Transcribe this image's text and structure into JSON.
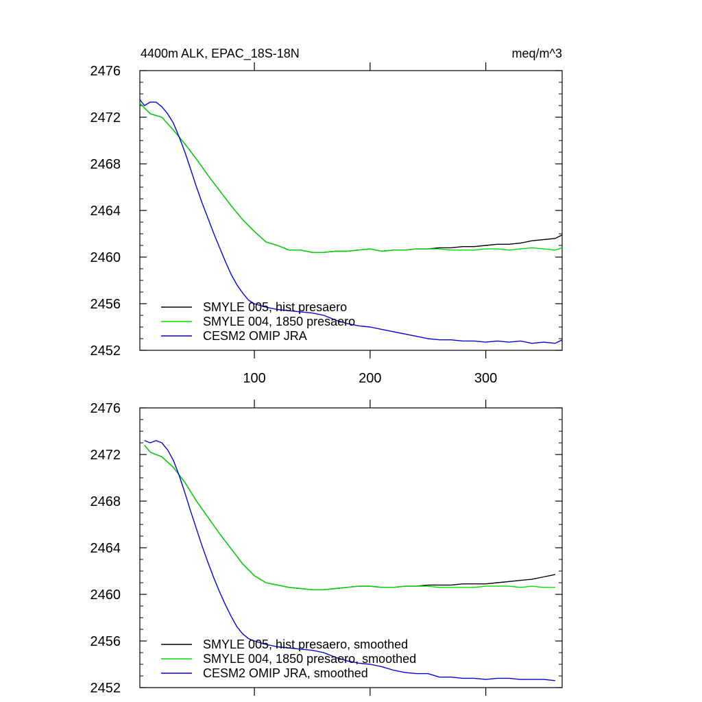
{
  "chart_data": [
    {
      "type": "line",
      "title_left": "4400m ALK, EPAC_18S-18N",
      "title_right": "meq/m^3",
      "xlim": [
        1,
        366
      ],
      "ylim": [
        2452,
        2476
      ],
      "yticks": [
        2452,
        2456,
        2460,
        2464,
        2468,
        2472,
        2476
      ],
      "xticks": [
        100,
        200,
        300
      ],
      "show_xtick_labels": true,
      "grid": false,
      "legend_position": "bottom-left",
      "colors": {
        "SMYLE 005": "#000000",
        "SMYLE 004": "#00dd00",
        "CESM2 OMIP": "#0000dd"
      },
      "series": [
        {
          "name": "SMYLE 005, hist presaero",
          "color": "#000000",
          "x": [
            1,
            10,
            20,
            30,
            40,
            50,
            60,
            70,
            80,
            90,
            100,
            110,
            120,
            130,
            140,
            150,
            160,
            170,
            180,
            190,
            200,
            210,
            220,
            230,
            240,
            250,
            260,
            270,
            280,
            290,
            300,
            310,
            320,
            330,
            340,
            350,
            360,
            366
          ],
          "y": [
            2473.2,
            2472.3,
            2472.0,
            2470.9,
            2469.7,
            2468.4,
            2467.0,
            2465.7,
            2464.4,
            2463.2,
            2462.2,
            2461.3,
            2461.0,
            2460.6,
            2460.6,
            2460.4,
            2460.4,
            2460.5,
            2460.5,
            2460.6,
            2460.7,
            2460.5,
            2460.6,
            2460.6,
            2460.7,
            2460.7,
            2460.8,
            2460.8,
            2460.9,
            2460.9,
            2461.0,
            2461.1,
            2461.1,
            2461.2,
            2461.4,
            2461.5,
            2461.6,
            2461.9
          ]
        },
        {
          "name": "SMYLE 004, 1850 presaero",
          "color": "#00dd00",
          "x": [
            1,
            10,
            20,
            30,
            40,
            50,
            60,
            70,
            80,
            90,
            100,
            110,
            120,
            130,
            140,
            150,
            160,
            170,
            180,
            190,
            200,
            210,
            220,
            230,
            240,
            250,
            260,
            270,
            280,
            290,
            300,
            310,
            320,
            330,
            340,
            350,
            360,
            366
          ],
          "y": [
            2473.2,
            2472.3,
            2472.0,
            2470.9,
            2469.7,
            2468.4,
            2467.0,
            2465.7,
            2464.4,
            2463.2,
            2462.2,
            2461.3,
            2461.0,
            2460.6,
            2460.6,
            2460.4,
            2460.4,
            2460.5,
            2460.5,
            2460.6,
            2460.7,
            2460.5,
            2460.6,
            2460.6,
            2460.7,
            2460.7,
            2460.7,
            2460.6,
            2460.6,
            2460.6,
            2460.7,
            2460.7,
            2460.6,
            2460.7,
            2460.8,
            2460.7,
            2460.6,
            2460.8
          ]
        },
        {
          "name": "CESM2 OMIP JRA",
          "color": "#0000dd",
          "x": [
            1,
            5,
            10,
            15,
            20,
            25,
            30,
            35,
            40,
            45,
            50,
            55,
            60,
            65,
            70,
            75,
            80,
            85,
            90,
            95,
            100,
            110,
            120,
            130,
            140,
            150,
            160,
            170,
            180,
            190,
            200,
            210,
            220,
            230,
            240,
            250,
            260,
            270,
            280,
            290,
            300,
            310,
            320,
            330,
            340,
            350,
            360,
            366
          ],
          "y": [
            2473.5,
            2473.0,
            2473.3,
            2473.3,
            2472.9,
            2472.3,
            2471.5,
            2470.3,
            2469.0,
            2467.5,
            2466.0,
            2464.6,
            2463.3,
            2462.0,
            2460.8,
            2459.6,
            2458.5,
            2457.6,
            2456.9,
            2456.3,
            2456.0,
            2455.7,
            2455.5,
            2455.4,
            2455.3,
            2455.2,
            2455.0,
            2454.6,
            2454.3,
            2454.1,
            2454.0,
            2453.8,
            2453.6,
            2453.4,
            2453.2,
            2453.0,
            2452.9,
            2452.9,
            2452.8,
            2452.8,
            2452.7,
            2452.8,
            2452.7,
            2452.8,
            2452.6,
            2452.7,
            2452.6,
            2452.9
          ]
        }
      ]
    },
    {
      "type": "line",
      "title_left": "",
      "title_right": "",
      "xlim": [
        1,
        366
      ],
      "ylim": [
        2452,
        2476
      ],
      "yticks": [
        2452,
        2456,
        2460,
        2464,
        2468,
        2472,
        2476
      ],
      "xticks": [
        100,
        200,
        300
      ],
      "show_xtick_labels": false,
      "grid": false,
      "legend_position": "bottom-left",
      "series": [
        {
          "name": "SMYLE 005, hist presaero, smoothed",
          "color": "#000000",
          "x": [
            5,
            10,
            20,
            30,
            40,
            50,
            60,
            70,
            80,
            90,
            100,
            110,
            120,
            130,
            140,
            150,
            160,
            170,
            180,
            190,
            200,
            210,
            220,
            230,
            240,
            250,
            260,
            270,
            280,
            290,
            300,
            310,
            320,
            330,
            340,
            350,
            360
          ],
          "y": [
            2472.8,
            2472.2,
            2471.8,
            2470.9,
            2469.6,
            2468.0,
            2466.6,
            2465.2,
            2463.9,
            2462.6,
            2461.6,
            2461.0,
            2460.8,
            2460.6,
            2460.5,
            2460.4,
            2460.4,
            2460.5,
            2460.6,
            2460.7,
            2460.7,
            2460.6,
            2460.6,
            2460.7,
            2460.7,
            2460.8,
            2460.8,
            2460.8,
            2460.9,
            2460.9,
            2460.9,
            2461.0,
            2461.1,
            2461.2,
            2461.3,
            2461.5,
            2461.7
          ]
        },
        {
          "name": "SMYLE 004, 1850 presaero, smoothed",
          "color": "#00dd00",
          "x": [
            5,
            10,
            20,
            30,
            40,
            50,
            60,
            70,
            80,
            90,
            100,
            110,
            120,
            130,
            140,
            150,
            160,
            170,
            180,
            190,
            200,
            210,
            220,
            230,
            240,
            250,
            260,
            270,
            280,
            290,
            300,
            310,
            320,
            330,
            340,
            350,
            360
          ],
          "y": [
            2472.8,
            2472.2,
            2471.8,
            2470.9,
            2469.6,
            2468.0,
            2466.6,
            2465.2,
            2463.9,
            2462.6,
            2461.6,
            2461.0,
            2460.8,
            2460.6,
            2460.5,
            2460.4,
            2460.4,
            2460.5,
            2460.6,
            2460.7,
            2460.7,
            2460.6,
            2460.6,
            2460.7,
            2460.7,
            2460.7,
            2460.6,
            2460.6,
            2460.6,
            2460.6,
            2460.7,
            2460.7,
            2460.7,
            2460.6,
            2460.7,
            2460.6,
            2460.6
          ]
        },
        {
          "name": "CESM2 OMIP JRA, smoothed",
          "color": "#0000dd",
          "x": [
            5,
            10,
            15,
            20,
            25,
            30,
            35,
            40,
            45,
            50,
            55,
            60,
            65,
            70,
            75,
            80,
            85,
            90,
            95,
            100,
            110,
            120,
            130,
            140,
            150,
            160,
            170,
            180,
            190,
            200,
            210,
            220,
            230,
            240,
            250,
            260,
            270,
            280,
            290,
            300,
            310,
            320,
            330,
            340,
            350,
            360
          ],
          "y": [
            2473.2,
            2473.0,
            2473.2,
            2473.0,
            2472.4,
            2471.5,
            2470.2,
            2468.7,
            2467.1,
            2465.6,
            2464.1,
            2462.7,
            2461.4,
            2460.2,
            2459.1,
            2458.1,
            2457.2,
            2456.6,
            2456.2,
            2456.0,
            2455.7,
            2455.5,
            2455.4,
            2455.3,
            2455.2,
            2455.0,
            2454.6,
            2454.3,
            2454.1,
            2454.0,
            2453.8,
            2453.5,
            2453.3,
            2453.2,
            2453.2,
            2452.9,
            2452.9,
            2452.8,
            2452.8,
            2452.7,
            2452.8,
            2452.8,
            2452.7,
            2452.7,
            2452.7,
            2452.6
          ]
        }
      ]
    }
  ]
}
